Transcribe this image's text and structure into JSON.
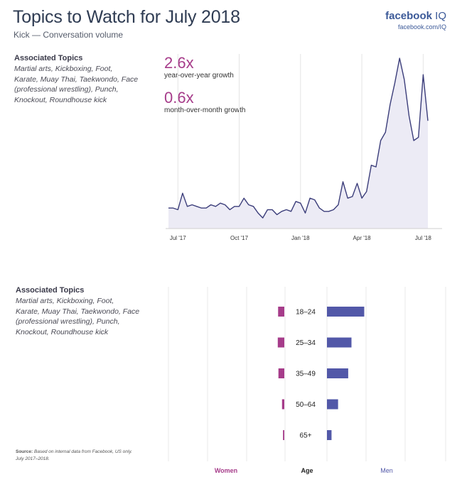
{
  "header": {
    "title": "Topics to Watch for July 2018",
    "subtitle": "Kick — Conversation volume",
    "brand_name": "facebook",
    "brand_suffix": "IQ",
    "brand_url": "facebook.com/IQ"
  },
  "associated_topics": {
    "heading": "Associated Topics",
    "text": "Martial arts, Kickboxing, Foot, Karate, Muay Thai, Taekwondo, Face (professional wrestling), Punch, Knockout, Roundhouse kick"
  },
  "stats": {
    "yoy_value": "2.6x",
    "yoy_label": "year-over-year growth",
    "mom_value": "0.6x",
    "mom_label": "month-over-month growth"
  },
  "source": {
    "label": "Source:",
    "text": "Based on internal data from Facebook, US only.",
    "period": "July 2017–2018."
  },
  "colors": {
    "line": "#3b3d7a",
    "area": "#ecebf5",
    "women": "#a63c8a",
    "men": "#5258a8",
    "grid": "#e4e4e4"
  },
  "chart_data": [
    {
      "type": "area",
      "x_ticks": [
        "Jul '17",
        "Oct '17",
        "Jan '18",
        "Apr '18",
        "Jul '18"
      ],
      "x_tick_positions": [
        2,
        15,
        28,
        41,
        54
      ],
      "ylim": [
        0,
        100
      ],
      "grid": "vertical",
      "x": [
        0,
        1,
        2,
        3,
        4,
        5,
        6,
        7,
        8,
        9,
        10,
        11,
        12,
        13,
        14,
        15,
        16,
        17,
        18,
        19,
        20,
        21,
        22,
        23,
        24,
        25,
        26,
        27,
        28,
        29,
        30,
        31,
        32,
        33,
        34,
        35,
        36,
        37,
        38,
        39,
        40,
        41,
        42,
        43,
        44,
        45,
        46,
        47,
        48,
        49,
        50,
        51,
        52,
        53,
        54,
        55
      ],
      "values": [
        9,
        9,
        8,
        18,
        10,
        11,
        10,
        9,
        9,
        11,
        10,
        12,
        11,
        8,
        10,
        10,
        15,
        11,
        10,
        6,
        3,
        8,
        8,
        5,
        7,
        8,
        7,
        13,
        12,
        6,
        15,
        14,
        9,
        7,
        7,
        8,
        11,
        25,
        15,
        16,
        24,
        15,
        19,
        35,
        34,
        50,
        55,
        72,
        85,
        100,
        87,
        65,
        50,
        52,
        90,
        62
      ]
    },
    {
      "type": "bar",
      "title": "",
      "categories": [
        "18–24",
        "25–34",
        "35–49",
        "50–64",
        "65+"
      ],
      "series": [
        {
          "name": "Women",
          "values": [
            1.9,
            2.0,
            1.8,
            0.7,
            0.4
          ]
        },
        {
          "name": "Men",
          "values": [
            11.4,
            7.5,
            6.5,
            3.4,
            1.4
          ]
        }
      ],
      "xlabel_left": "Women",
      "xlabel_center": "Age",
      "xlabel_right": "Men"
    }
  ]
}
